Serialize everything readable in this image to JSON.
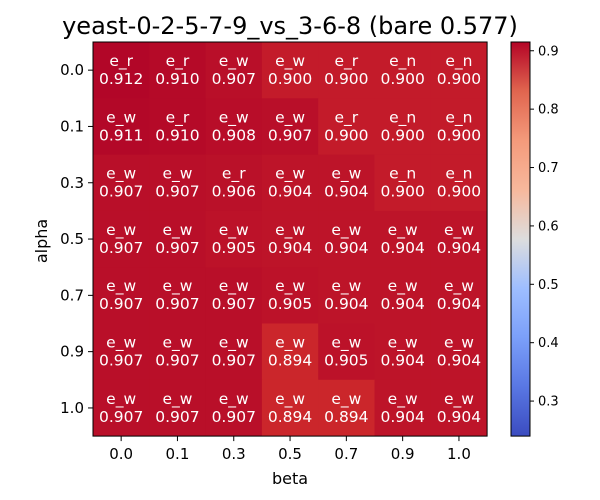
{
  "chart_data": {
    "type": "heatmap",
    "title": "yeast-0-2-5-7-9_vs_3-6-8 (bare 0.577)",
    "xlabel": "beta",
    "ylabel": "alpha",
    "x_categories": [
      "0.0",
      "0.1",
      "0.3",
      "0.5",
      "0.7",
      "0.9",
      "1.0"
    ],
    "y_categories": [
      "0.0",
      "0.1",
      "0.3",
      "0.5",
      "0.7",
      "0.9",
      "1.0"
    ],
    "values": [
      [
        0.912,
        0.91,
        0.907,
        0.9,
        0.9,
        0.9,
        0.9
      ],
      [
        0.911,
        0.91,
        0.908,
        0.907,
        0.9,
        0.9,
        0.9
      ],
      [
        0.907,
        0.907,
        0.906,
        0.904,
        0.904,
        0.9,
        0.9
      ],
      [
        0.907,
        0.907,
        0.905,
        0.904,
        0.904,
        0.904,
        0.904
      ],
      [
        0.907,
        0.907,
        0.907,
        0.905,
        0.904,
        0.904,
        0.904
      ],
      [
        0.907,
        0.907,
        0.907,
        0.894,
        0.905,
        0.904,
        0.904
      ],
      [
        0.907,
        0.907,
        0.907,
        0.894,
        0.894,
        0.904,
        0.904
      ]
    ],
    "value_labels": [
      [
        "0.912",
        "0.910",
        "0.907",
        "0.900",
        "0.900",
        "0.900",
        "0.900"
      ],
      [
        "0.911",
        "0.910",
        "0.908",
        "0.907",
        "0.900",
        "0.900",
        "0.900"
      ],
      [
        "0.907",
        "0.907",
        "0.906",
        "0.904",
        "0.904",
        "0.900",
        "0.900"
      ],
      [
        "0.907",
        "0.907",
        "0.905",
        "0.904",
        "0.904",
        "0.904",
        "0.904"
      ],
      [
        "0.907",
        "0.907",
        "0.907",
        "0.905",
        "0.904",
        "0.904",
        "0.904"
      ],
      [
        "0.907",
        "0.907",
        "0.907",
        "0.894",
        "0.905",
        "0.904",
        "0.904"
      ],
      [
        "0.907",
        "0.907",
        "0.907",
        "0.894",
        "0.894",
        "0.904",
        "0.904"
      ]
    ],
    "cell_labels": [
      [
        "e_r",
        "e_r",
        "e_w",
        "e_w",
        "e_r",
        "e_n",
        "e_n"
      ],
      [
        "e_w",
        "e_r",
        "e_w",
        "e_w",
        "e_r",
        "e_n",
        "e_n"
      ],
      [
        "e_w",
        "e_w",
        "e_r",
        "e_w",
        "e_w",
        "e_n",
        "e_n"
      ],
      [
        "e_w",
        "e_w",
        "e_w",
        "e_w",
        "e_w",
        "e_w",
        "e_w"
      ],
      [
        "e_w",
        "e_w",
        "e_w",
        "e_w",
        "e_w",
        "e_w",
        "e_w"
      ],
      [
        "e_w",
        "e_w",
        "e_w",
        "e_w",
        "e_w",
        "e_w",
        "e_w"
      ],
      [
        "e_w",
        "e_w",
        "e_w",
        "e_w",
        "e_w",
        "e_w",
        "e_w"
      ]
    ],
    "colorbar": {
      "colormap": "coolwarm",
      "vmin": 0.24,
      "vmax": 0.915,
      "ticks": [
        "0.3",
        "0.4",
        "0.5",
        "0.6",
        "0.7",
        "0.8",
        "0.9"
      ]
    },
    "grid": false,
    "legend": "none"
  }
}
